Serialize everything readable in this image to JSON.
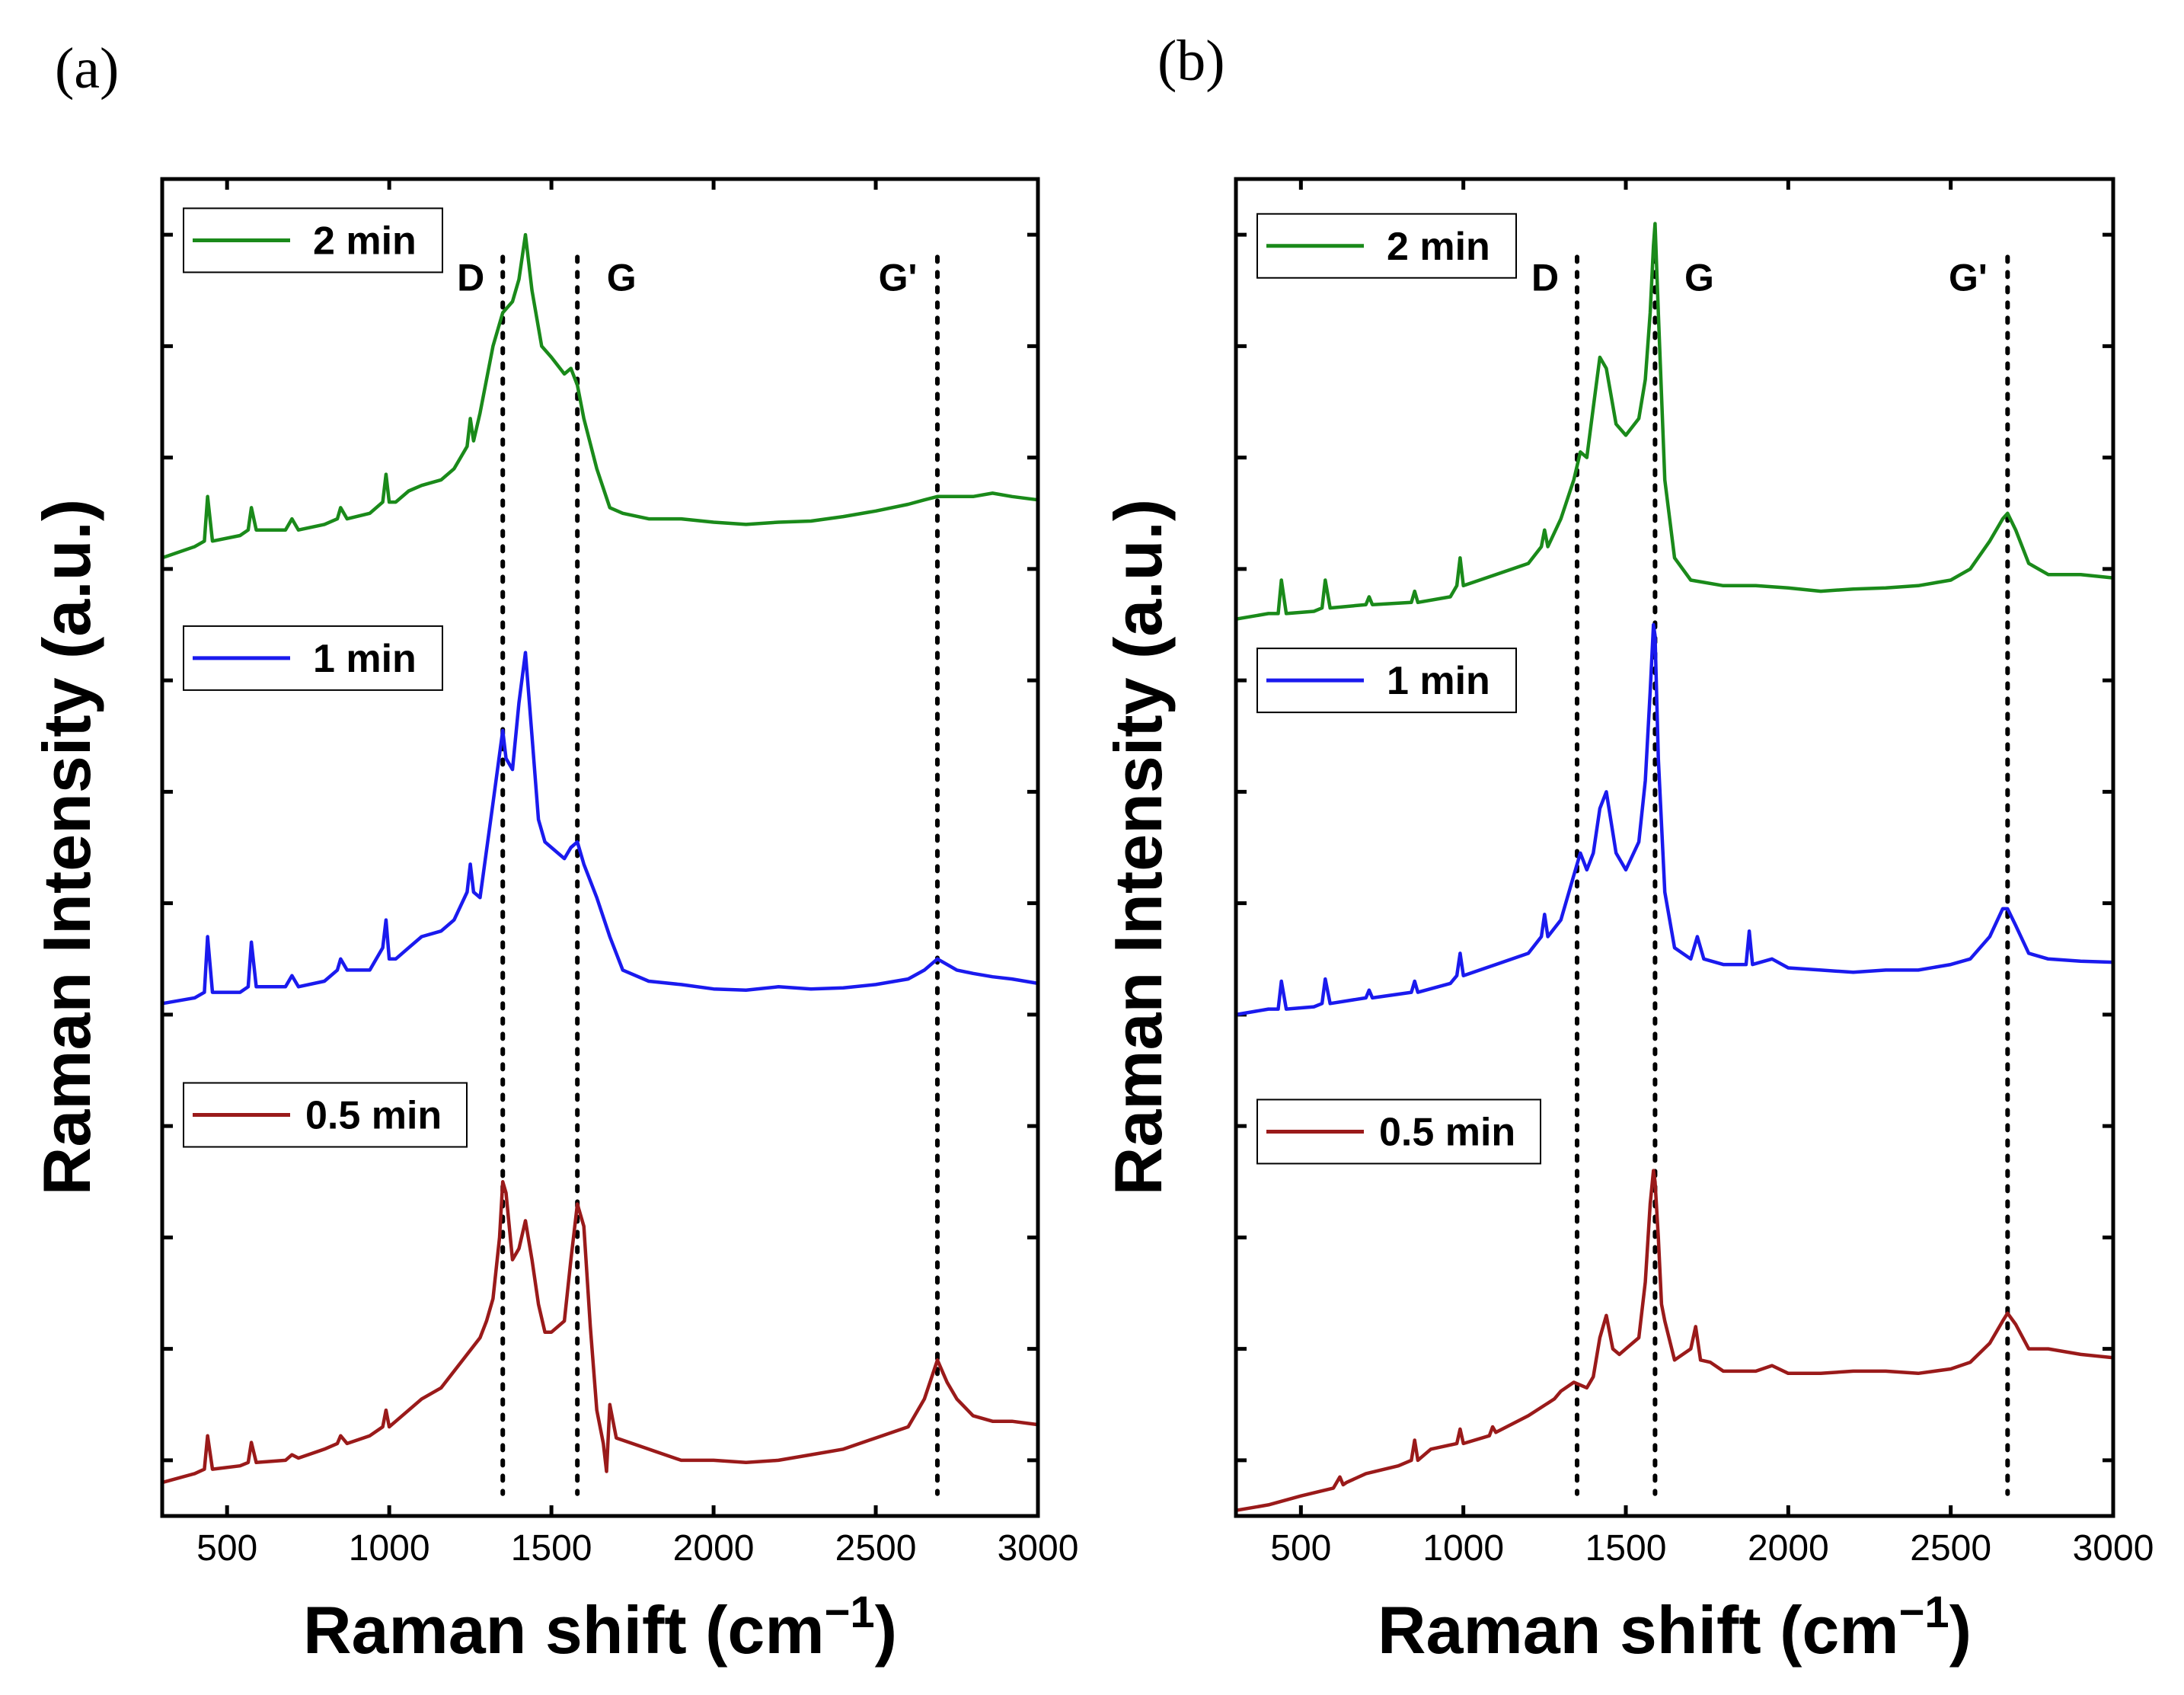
{
  "chart_data": [
    {
      "panel_label": "(a)",
      "type": "line",
      "xlabel_base": "Raman shift (cm",
      "xlabel_sup": "−1",
      "xlabel_close": ")",
      "ylabel": "Raman Intensity (a.u.)",
      "xlim": [
        300,
        3000
      ],
      "ylim": [
        0,
        12
      ],
      "x_ticks": [
        500,
        1000,
        1500,
        2000,
        2500,
        3000
      ],
      "x_tick_labels": [
        "500",
        "1000",
        "1500",
        "2000",
        "2500",
        "3000"
      ],
      "y_tick_values": [
        0.5,
        1.5,
        2.5,
        3.5,
        4.5,
        5.5,
        6.5,
        7.5,
        8.5,
        9.5,
        10.5,
        11.5
      ],
      "peak_lines": [
        {
          "label": "D",
          "x": 1350
        },
        {
          "label": "G",
          "x": 1580
        },
        {
          "label": "G'",
          "x": 2690
        }
      ],
      "series": [
        {
          "name": "2 min",
          "color": "#1a8a1a",
          "legend_y": 11.45,
          "x": [
            300,
            400,
            430,
            440,
            455,
            540,
            565,
            575,
            590,
            680,
            700,
            720,
            800,
            840,
            850,
            870,
            940,
            980,
            990,
            1000,
            1020,
            1060,
            1100,
            1160,
            1200,
            1240,
            1250,
            1260,
            1280,
            1320,
            1350,
            1380,
            1400,
            1420,
            1440,
            1470,
            1500,
            1540,
            1560,
            1580,
            1600,
            1640,
            1680,
            1720,
            1800,
            1900,
            2000,
            2100,
            2200,
            2300,
            2400,
            2500,
            2600,
            2650,
            2690,
            2750,
            2800,
            2860,
            2920,
            3000
          ],
          "y": [
            8.6,
            8.7,
            8.75,
            9.15,
            8.75,
            8.8,
            8.85,
            9.05,
            8.85,
            8.85,
            8.95,
            8.85,
            8.9,
            8.95,
            9.05,
            8.95,
            9.0,
            9.1,
            9.35,
            9.1,
            9.1,
            9.2,
            9.25,
            9.3,
            9.4,
            9.6,
            9.85,
            9.65,
            9.9,
            10.5,
            10.8,
            10.9,
            11.1,
            11.5,
            11.0,
            10.5,
            10.4,
            10.25,
            10.3,
            10.15,
            9.85,
            9.4,
            9.05,
            9.0,
            8.95,
            8.95,
            8.92,
            8.9,
            8.92,
            8.93,
            8.97,
            9.02,
            9.08,
            9.12,
            9.15,
            9.15,
            9.15,
            9.18,
            9.15,
            9.12
          ]
        },
        {
          "name": "1 min",
          "color": "#1a1aee",
          "legend_y": 7.7,
          "x": [
            300,
            400,
            430,
            440,
            455,
            540,
            565,
            575,
            590,
            680,
            700,
            720,
            800,
            840,
            850,
            870,
            940,
            980,
            990,
            1000,
            1020,
            1060,
            1100,
            1160,
            1200,
            1240,
            1250,
            1260,
            1280,
            1320,
            1350,
            1360,
            1380,
            1400,
            1420,
            1440,
            1460,
            1480,
            1500,
            1540,
            1560,
            1580,
            1600,
            1640,
            1680,
            1720,
            1800,
            1900,
            2000,
            2100,
            2200,
            2300,
            2400,
            2500,
            2600,
            2650,
            2690,
            2750,
            2800,
            2860,
            2920,
            3000
          ],
          "y": [
            4.6,
            4.65,
            4.7,
            5.2,
            4.7,
            4.7,
            4.75,
            5.15,
            4.75,
            4.75,
            4.85,
            4.75,
            4.8,
            4.9,
            5.0,
            4.9,
            4.9,
            5.1,
            5.35,
            5.0,
            5.0,
            5.1,
            5.2,
            5.25,
            5.35,
            5.6,
            5.85,
            5.6,
            5.55,
            6.4,
            7.05,
            6.8,
            6.7,
            7.3,
            7.75,
            7.0,
            6.25,
            6.05,
            6.0,
            5.9,
            6.0,
            6.05,
            5.85,
            5.55,
            5.2,
            4.9,
            4.8,
            4.77,
            4.73,
            4.72,
            4.75,
            4.73,
            4.74,
            4.77,
            4.82,
            4.9,
            5.0,
            4.9,
            4.87,
            4.84,
            4.82,
            4.78
          ]
        },
        {
          "name": "0.5 min",
          "color": "#9a1a1a",
          "legend_y": 3.6,
          "x": [
            300,
            400,
            430,
            440,
            455,
            540,
            565,
            575,
            590,
            680,
            700,
            720,
            800,
            840,
            850,
            870,
            940,
            980,
            990,
            1000,
            1020,
            1060,
            1100,
            1160,
            1200,
            1240,
            1280,
            1300,
            1320,
            1340,
            1350,
            1360,
            1380,
            1400,
            1420,
            1440,
            1460,
            1480,
            1500,
            1540,
            1560,
            1580,
            1600,
            1620,
            1640,
            1660,
            1670,
            1680,
            1700,
            1800,
            1900,
            2000,
            2100,
            2200,
            2300,
            2400,
            2500,
            2600,
            2650,
            2690,
            2720,
            2750,
            2800,
            2860,
            2920,
            3000
          ],
          "y": [
            0.3,
            0.38,
            0.42,
            0.72,
            0.42,
            0.45,
            0.48,
            0.66,
            0.48,
            0.5,
            0.55,
            0.52,
            0.6,
            0.65,
            0.72,
            0.65,
            0.72,
            0.8,
            0.95,
            0.8,
            0.85,
            0.95,
            1.05,
            1.15,
            1.3,
            1.45,
            1.6,
            1.75,
            1.95,
            2.5,
            3.0,
            2.9,
            2.3,
            2.4,
            2.65,
            2.3,
            1.9,
            1.65,
            1.65,
            1.75,
            2.3,
            2.8,
            2.6,
            1.7,
            0.95,
            0.65,
            0.4,
            1.0,
            0.7,
            0.6,
            0.5,
            0.5,
            0.48,
            0.5,
            0.55,
            0.6,
            0.7,
            0.8,
            1.05,
            1.4,
            1.2,
            1.05,
            0.9,
            0.85,
            0.85,
            0.82
          ]
        }
      ]
    },
    {
      "panel_label": "(b)",
      "type": "line",
      "xlabel_base": "Raman shift (cm",
      "xlabel_sup": "−1",
      "xlabel_close": ")",
      "ylabel": "Raman Intensity (a.u.)",
      "xlim": [
        300,
        3000
      ],
      "ylim": [
        0,
        12
      ],
      "x_ticks": [
        500,
        1000,
        1500,
        2000,
        2500,
        3000
      ],
      "x_tick_labels": [
        "500",
        "1000",
        "1500",
        "2000",
        "2500",
        "3000"
      ],
      "y_tick_values": [
        0.5,
        1.5,
        2.5,
        3.5,
        4.5,
        5.5,
        6.5,
        7.5,
        8.5,
        9.5,
        10.5,
        11.5
      ],
      "peak_lines": [
        {
          "label": "D",
          "x": 1350
        },
        {
          "label": "G",
          "x": 1590
        },
        {
          "label": "G'",
          "x": 2675
        }
      ],
      "series": [
        {
          "name": "2 min",
          "color": "#1a8a1a",
          "legend_y": 11.4,
          "x": [
            300,
            400,
            430,
            440,
            455,
            540,
            565,
            575,
            590,
            700,
            710,
            720,
            840,
            850,
            860,
            960,
            980,
            990,
            1000,
            1100,
            1200,
            1240,
            1250,
            1260,
            1300,
            1340,
            1360,
            1380,
            1400,
            1420,
            1440,
            1470,
            1500,
            1540,
            1560,
            1575,
            1585,
            1590,
            1600,
            1620,
            1650,
            1700,
            1800,
            1900,
            2000,
            2100,
            2200,
            2300,
            2400,
            2500,
            2560,
            2620,
            2660,
            2675,
            2700,
            2740,
            2800,
            2900,
            3000
          ],
          "y": [
            8.05,
            8.1,
            8.1,
            8.4,
            8.1,
            8.12,
            8.15,
            8.4,
            8.15,
            8.18,
            8.25,
            8.18,
            8.2,
            8.3,
            8.2,
            8.25,
            8.35,
            8.6,
            8.35,
            8.45,
            8.55,
            8.7,
            8.85,
            8.7,
            8.95,
            9.3,
            9.55,
            9.5,
            9.95,
            10.4,
            10.3,
            9.8,
            9.7,
            9.85,
            10.2,
            10.8,
            11.4,
            11.6,
            10.8,
            9.3,
            8.6,
            8.4,
            8.35,
            8.35,
            8.33,
            8.3,
            8.32,
            8.33,
            8.35,
            8.4,
            8.5,
            8.75,
            8.95,
            9.0,
            8.85,
            8.55,
            8.45,
            8.45,
            8.42
          ]
        },
        {
          "name": "1 min",
          "color": "#1a1aee",
          "legend_y": 7.5,
          "x": [
            300,
            400,
            430,
            440,
            455,
            540,
            565,
            575,
            590,
            700,
            710,
            720,
            840,
            850,
            860,
            960,
            980,
            990,
            1000,
            1100,
            1200,
            1240,
            1250,
            1260,
            1300,
            1340,
            1360,
            1380,
            1400,
            1420,
            1440,
            1470,
            1500,
            1540,
            1560,
            1575,
            1585,
            1590,
            1600,
            1620,
            1650,
            1700,
            1720,
            1740,
            1800,
            1870,
            1880,
            1890,
            1950,
            2000,
            2100,
            2200,
            2300,
            2400,
            2500,
            2560,
            2620,
            2660,
            2675,
            2700,
            2740,
            2800,
            2900,
            3000
          ],
          "y": [
            4.5,
            4.55,
            4.55,
            4.8,
            4.55,
            4.57,
            4.6,
            4.82,
            4.6,
            4.65,
            4.72,
            4.65,
            4.7,
            4.8,
            4.7,
            4.78,
            4.85,
            5.05,
            4.85,
            4.95,
            5.05,
            5.2,
            5.4,
            5.2,
            5.35,
            5.75,
            5.95,
            5.8,
            5.95,
            6.35,
            6.5,
            5.95,
            5.8,
            6.05,
            6.6,
            7.4,
            8.0,
            7.9,
            6.8,
            5.6,
            5.1,
            5.0,
            5.2,
            5.0,
            4.95,
            4.95,
            5.25,
            4.95,
            5.0,
            4.92,
            4.9,
            4.88,
            4.9,
            4.9,
            4.95,
            5.0,
            5.2,
            5.45,
            5.45,
            5.3,
            5.05,
            5.0,
            4.98,
            4.97
          ]
        },
        {
          "name": "0.5 min",
          "color": "#9a1a1a",
          "legend_y": 3.45,
          "x": [
            300,
            400,
            500,
            600,
            620,
            630,
            640,
            700,
            800,
            840,
            850,
            860,
            900,
            980,
            990,
            1000,
            1080,
            1090,
            1100,
            1200,
            1280,
            1300,
            1340,
            1380,
            1400,
            1420,
            1440,
            1460,
            1480,
            1500,
            1540,
            1560,
            1575,
            1585,
            1590,
            1600,
            1610,
            1620,
            1650,
            1700,
            1715,
            1730,
            1760,
            1800,
            1900,
            1950,
            2000,
            2100,
            2200,
            2300,
            2400,
            2500,
            2560,
            2620,
            2660,
            2675,
            2700,
            2740,
            2800,
            2900,
            3000
          ],
          "y": [
            0.05,
            0.1,
            0.18,
            0.25,
            0.35,
            0.28,
            0.3,
            0.38,
            0.45,
            0.5,
            0.68,
            0.5,
            0.6,
            0.65,
            0.78,
            0.65,
            0.72,
            0.8,
            0.75,
            0.9,
            1.05,
            1.12,
            1.2,
            1.15,
            1.25,
            1.6,
            1.8,
            1.5,
            1.45,
            1.5,
            1.6,
            2.1,
            2.8,
            3.1,
            3.0,
            2.5,
            1.9,
            1.75,
            1.4,
            1.5,
            1.7,
            1.4,
            1.38,
            1.3,
            1.3,
            1.35,
            1.28,
            1.28,
            1.3,
            1.3,
            1.28,
            1.32,
            1.38,
            1.55,
            1.75,
            1.82,
            1.72,
            1.5,
            1.5,
            1.45,
            1.42
          ]
        }
      ]
    }
  ]
}
